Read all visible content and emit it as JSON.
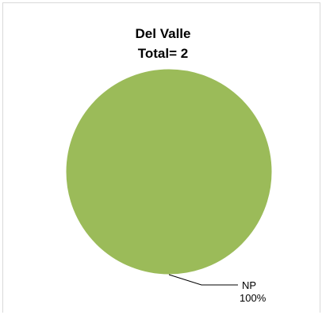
{
  "chart_data": {
    "type": "pie",
    "title": "Del Valle",
    "subtitle": "Total= 2",
    "slices": [
      {
        "label": "NP",
        "value": 2,
        "percent_label": "100%",
        "color": "#9bbb59"
      }
    ],
    "legend": "none",
    "data_labels": "outside-with-leader"
  }
}
